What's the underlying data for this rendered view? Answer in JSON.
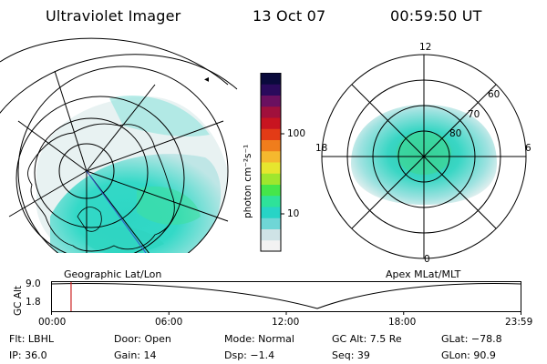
{
  "header": {
    "title": "Ultraviolet Imager",
    "date": "13 Oct 07",
    "time": "00:59:50 UT"
  },
  "left_panel": {
    "caption": "Geographic Lat/Lon"
  },
  "right_panel": {
    "caption": "Apex MLat/MLT",
    "mlt_labels": {
      "top": "12",
      "bottom": "0",
      "left": "18",
      "right": "6"
    },
    "lat_labels": [
      "60",
      "70",
      "80"
    ]
  },
  "colorbar": {
    "unit_label": "photon cm⁻²s⁻¹",
    "ticks": [
      "100",
      "10"
    ],
    "scale": "log",
    "colors": [
      "#f2f2f2",
      "#cfe3e6",
      "#6fd6d6",
      "#27d4c6",
      "#2ee29a",
      "#45e64a",
      "#9fe62e",
      "#e6e62e",
      "#f5b82e",
      "#f07d1c",
      "#e33b16",
      "#c81420",
      "#a0103c",
      "#6a1060",
      "#2a0a5c",
      "#0a0a3c"
    ]
  },
  "timeline": {
    "ylabel": "GC Alt",
    "y_ticks": [
      "9.0",
      "1.8"
    ],
    "x_ticks": [
      "00:00",
      "06:00",
      "12:00",
      "18:00",
      "23:59"
    ],
    "marker_color": "#cc2222",
    "current_time_hours": 1.0
  },
  "info": {
    "flt": "Flt: LBHL",
    "door": "Door: Open",
    "mode": "Mode: Normal",
    "gcalt": "GC Alt: 7.5 Re",
    "glat": "GLat:  −78.8",
    "ip": "IP: 36.0",
    "gain": "Gain: 14",
    "dsp": "Dsp:   −1.4",
    "seq": "Seq: 39",
    "glon": "GLon:  90.9"
  }
}
